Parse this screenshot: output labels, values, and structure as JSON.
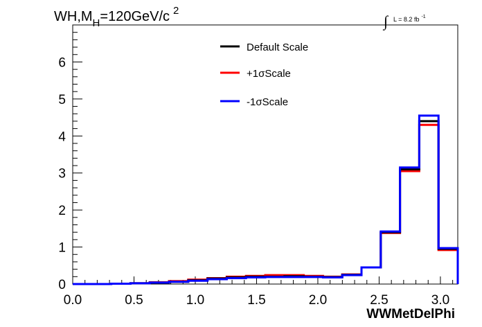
{
  "title": {
    "main": "WH,M",
    "sub": "H",
    "rest": "=120GeV/c",
    "sup": "2"
  },
  "luminosity": {
    "integral_symbol": "∫",
    "text": "L = 8.2 fb",
    "sup": "-1"
  },
  "colors": {
    "default": "#000000",
    "plus": "#ff0000",
    "minus": "#0000ff"
  },
  "chart_data": {
    "type": "line",
    "style": "histogram-step",
    "xlabel": "WWMetDelPhi",
    "ylabel": "",
    "xlim": [
      0,
      3.1416
    ],
    "ylim": [
      0,
      7
    ],
    "x_ticks": [
      "0.0",
      "0.5",
      "1.0",
      "1.5",
      "2.0",
      "2.5",
      "3.0"
    ],
    "y_ticks": [
      "0",
      "1",
      "2",
      "3",
      "4",
      "5",
      "6"
    ],
    "legend_position": "top-center",
    "bin_edges": [
      0.0,
      0.1571,
      0.3142,
      0.4712,
      0.6283,
      0.7854,
      0.9425,
      1.0996,
      1.2566,
      1.4137,
      1.5708,
      1.7279,
      1.885,
      2.042,
      2.1991,
      2.3562,
      2.5133,
      2.6704,
      2.8274,
      2.9845,
      3.1416
    ],
    "series": [
      {
        "name": "Default Scale",
        "values": [
          0.0,
          0.0,
          0.01,
          0.02,
          0.04,
          0.06,
          0.1,
          0.15,
          0.18,
          0.2,
          0.2,
          0.21,
          0.2,
          0.19,
          0.25,
          0.45,
          1.4,
          3.1,
          4.4,
          0.95
        ]
      },
      {
        "name": "+1σScale",
        "values": [
          0.0,
          0.0,
          0.01,
          0.02,
          0.05,
          0.08,
          0.12,
          0.16,
          0.2,
          0.22,
          0.24,
          0.24,
          0.22,
          0.2,
          0.26,
          0.45,
          1.38,
          3.05,
          4.3,
          0.92
        ]
      },
      {
        "name": "-1σScale",
        "values": [
          0.0,
          0.0,
          0.01,
          0.02,
          0.04,
          0.06,
          0.09,
          0.13,
          0.16,
          0.18,
          0.19,
          0.19,
          0.19,
          0.18,
          0.24,
          0.45,
          1.42,
          3.15,
          4.55,
          0.97
        ]
      }
    ]
  }
}
